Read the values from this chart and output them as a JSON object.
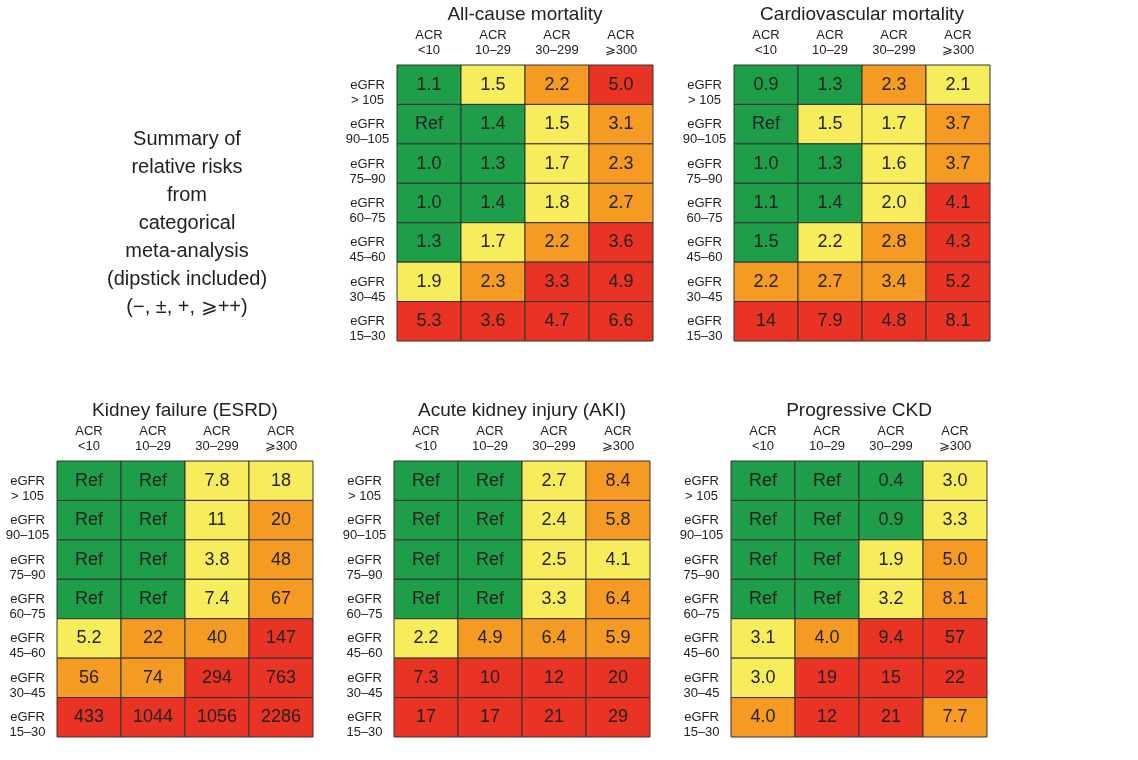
{
  "chart_data": [
    {
      "type": "other",
      "annotations": [
        "Summary of",
        "relative risks",
        "from",
        "categorical",
        "meta-analysis",
        "(dipstick included)",
        "(−, ±, +, ⩾++)"
      ]
    },
    {
      "type": "heatmap",
      "title": "All-cause mortality",
      "categories": [
        "ACR <10",
        "ACR 10–29",
        "ACR 30–299",
        "ACR ⩾300"
      ],
      "y_categories": [
        "eGFR > 105",
        "eGFR 90–105",
        "eGFR 75–90",
        "eGFR 60–75",
        "eGFR 45–60",
        "eGFR 30–45",
        "eGFR 15–30"
      ],
      "cells": [
        [
          1.1,
          1.5,
          2.2,
          5.0
        ],
        [
          null,
          1.4,
          1.5,
          3.1
        ],
        [
          1.0,
          1.3,
          1.7,
          2.3
        ],
        [
          1.0,
          1.4,
          1.8,
          2.7
        ],
        [
          1.3,
          1.7,
          2.2,
          3.6
        ],
        [
          1.9,
          2.3,
          3.3,
          4.9
        ],
        [
          5.3,
          3.6,
          4.7,
          6.6
        ]
      ],
      "cell_labels": [
        [
          "1.1",
          "1.5",
          "2.2",
          "5.0"
        ],
        [
          "Ref",
          "1.4",
          "1.5",
          "3.1"
        ],
        [
          "1.0",
          "1.3",
          "1.7",
          "2.3"
        ],
        [
          "1.0",
          "1.4",
          "1.8",
          "2.7"
        ],
        [
          "1.3",
          "1.7",
          "2.2",
          "3.6"
        ],
        [
          "1.9",
          "2.3",
          "3.3",
          "4.9"
        ],
        [
          "5.3",
          "3.6",
          "4.7",
          "6.6"
        ]
      ],
      "colors": [
        [
          "#1e9e48",
          "#f7ec5b",
          "#f59a23",
          "#e93425"
        ],
        [
          "#1e9e48",
          "#1e9e48",
          "#f7ec5b",
          "#f59a23"
        ],
        [
          "#1e9e48",
          "#1e9e48",
          "#f7ec5b",
          "#f59a23"
        ],
        [
          "#1e9e48",
          "#1e9e48",
          "#f7ec5b",
          "#f59a23"
        ],
        [
          "#1e9e48",
          "#f7ec5b",
          "#f59a23",
          "#e93425"
        ],
        [
          "#f7ec5b",
          "#f59a23",
          "#e93425",
          "#e93425"
        ],
        [
          "#e93425",
          "#e93425",
          "#e93425",
          "#e93425"
        ]
      ]
    },
    {
      "type": "heatmap",
      "title": "Cardiovascular mortality",
      "categories": [
        "ACR <10",
        "ACR 10–29",
        "ACR 30–299",
        "ACR ⩾300"
      ],
      "y_categories": [
        "eGFR > 105",
        "eGFR 90–105",
        "eGFR 75–90",
        "eGFR 60–75",
        "eGFR 45–60",
        "eGFR 30–45",
        "eGFR 15–30"
      ],
      "cells": [
        [
          0.9,
          1.3,
          2.3,
          2.1
        ],
        [
          null,
          1.5,
          1.7,
          3.7
        ],
        [
          1.0,
          1.3,
          1.6,
          3.7
        ],
        [
          1.1,
          1.4,
          2.0,
          4.1
        ],
        [
          1.5,
          2.2,
          2.8,
          4.3
        ],
        [
          2.2,
          2.7,
          3.4,
          5.2
        ],
        [
          14,
          7.9,
          4.8,
          8.1
        ]
      ],
      "cell_labels": [
        [
          "0.9",
          "1.3",
          "2.3",
          "2.1"
        ],
        [
          "Ref",
          "1.5",
          "1.7",
          "3.7"
        ],
        [
          "1.0",
          "1.3",
          "1.6",
          "3.7"
        ],
        [
          "1.1",
          "1.4",
          "2.0",
          "4.1"
        ],
        [
          "1.5",
          "2.2",
          "2.8",
          "4.3"
        ],
        [
          "2.2",
          "2.7",
          "3.4",
          "5.2"
        ],
        [
          "14",
          "7.9",
          "4.8",
          "8.1"
        ]
      ],
      "colors": [
        [
          "#1e9e48",
          "#1e9e48",
          "#f59a23",
          "#f7ec5b"
        ],
        [
          "#1e9e48",
          "#f7ec5b",
          "#f7ec5b",
          "#f59a23"
        ],
        [
          "#1e9e48",
          "#1e9e48",
          "#f7ec5b",
          "#f59a23"
        ],
        [
          "#1e9e48",
          "#1e9e48",
          "#f7ec5b",
          "#e93425"
        ],
        [
          "#1e9e48",
          "#f7ec5b",
          "#f59a23",
          "#e93425"
        ],
        [
          "#f59a23",
          "#f59a23",
          "#f59a23",
          "#e93425"
        ],
        [
          "#e93425",
          "#e93425",
          "#e93425",
          "#e93425"
        ]
      ]
    },
    {
      "type": "heatmap",
      "title": "Kidney failure (ESRD)",
      "categories": [
        "ACR <10",
        "ACR 10–29",
        "ACR 30–299",
        "ACR ⩾300"
      ],
      "y_categories": [
        "eGFR > 105",
        "eGFR 90–105",
        "eGFR 75–90",
        "eGFR 60–75",
        "eGFR 45–60",
        "eGFR 30–45",
        "eGFR 15–30"
      ],
      "cells": [
        [
          null,
          null,
          7.8,
          18
        ],
        [
          null,
          null,
          11,
          20
        ],
        [
          null,
          null,
          3.8,
          48
        ],
        [
          null,
          null,
          7.4,
          67
        ],
        [
          5.2,
          22,
          40,
          147
        ],
        [
          56,
          74,
          294,
          763
        ],
        [
          433,
          1044,
          1056,
          2286
        ]
      ],
      "cell_labels": [
        [
          "Ref",
          "Ref",
          "7.8",
          "18"
        ],
        [
          "Ref",
          "Ref",
          "11",
          "20"
        ],
        [
          "Ref",
          "Ref",
          "3.8",
          "48"
        ],
        [
          "Ref",
          "Ref",
          "7.4",
          "67"
        ],
        [
          "5.2",
          "22",
          "40",
          "147"
        ],
        [
          "56",
          "74",
          "294",
          "763"
        ],
        [
          "433",
          "1044",
          "1056",
          "2286"
        ]
      ],
      "colors": [
        [
          "#1e9e48",
          "#1e9e48",
          "#f7ec5b",
          "#f7ec5b"
        ],
        [
          "#1e9e48",
          "#1e9e48",
          "#f7ec5b",
          "#f59a23"
        ],
        [
          "#1e9e48",
          "#1e9e48",
          "#f7ec5b",
          "#f59a23"
        ],
        [
          "#1e9e48",
          "#1e9e48",
          "#f7ec5b",
          "#f59a23"
        ],
        [
          "#f7ec5b",
          "#f59a23",
          "#f59a23",
          "#e93425"
        ],
        [
          "#f59a23",
          "#f59a23",
          "#e93425",
          "#e93425"
        ],
        [
          "#e93425",
          "#e93425",
          "#e93425",
          "#e93425"
        ]
      ]
    },
    {
      "type": "heatmap",
      "title": "Acute kidney injury (AKI)",
      "categories": [
        "ACR <10",
        "ACR 10–29",
        "ACR 30–299",
        "ACR ⩾300"
      ],
      "y_categories": [
        "eGFR > 105",
        "eGFR 90–105",
        "eGFR 75–90",
        "eGFR 60–75",
        "eGFR 45–60",
        "eGFR 30–45",
        "eGFR 15–30"
      ],
      "cells": [
        [
          null,
          null,
          2.7,
          8.4
        ],
        [
          null,
          null,
          2.4,
          5.8
        ],
        [
          null,
          null,
          2.5,
          4.1
        ],
        [
          null,
          null,
          3.3,
          6.4
        ],
        [
          2.2,
          4.9,
          6.4,
          5.9
        ],
        [
          7.3,
          10,
          12,
          20
        ],
        [
          17,
          17,
          21,
          29
        ]
      ],
      "cell_labels": [
        [
          "Ref",
          "Ref",
          "2.7",
          "8.4"
        ],
        [
          "Ref",
          "Ref",
          "2.4",
          "5.8"
        ],
        [
          "Ref",
          "Ref",
          "2.5",
          "4.1"
        ],
        [
          "Ref",
          "Ref",
          "3.3",
          "6.4"
        ],
        [
          "2.2",
          "4.9",
          "6.4",
          "5.9"
        ],
        [
          "7.3",
          "10",
          "12",
          "20"
        ],
        [
          "17",
          "17",
          "21",
          "29"
        ]
      ],
      "colors": [
        [
          "#1e9e48",
          "#1e9e48",
          "#f7ec5b",
          "#f59a23"
        ],
        [
          "#1e9e48",
          "#1e9e48",
          "#f7ec5b",
          "#f59a23"
        ],
        [
          "#1e9e48",
          "#1e9e48",
          "#f7ec5b",
          "#f7ec5b"
        ],
        [
          "#1e9e48",
          "#1e9e48",
          "#f7ec5b",
          "#f59a23"
        ],
        [
          "#f7ec5b",
          "#f59a23",
          "#f59a23",
          "#f59a23"
        ],
        [
          "#e93425",
          "#e93425",
          "#e93425",
          "#e93425"
        ],
        [
          "#e93425",
          "#e93425",
          "#e93425",
          "#e93425"
        ]
      ]
    },
    {
      "type": "heatmap",
      "title": "Progressive CKD",
      "categories": [
        "ACR <10",
        "ACR 10–29",
        "ACR 30–299",
        "ACR ⩾300"
      ],
      "y_categories": [
        "eGFR > 105",
        "eGFR 90–105",
        "eGFR 75–90",
        "eGFR 60–75",
        "eGFR 45–60",
        "eGFR 30–45",
        "eGFR 15–30"
      ],
      "cells": [
        [
          null,
          null,
          0.4,
          3.0
        ],
        [
          null,
          null,
          0.9,
          3.3
        ],
        [
          null,
          null,
          1.9,
          5.0
        ],
        [
          null,
          null,
          3.2,
          8.1
        ],
        [
          3.1,
          4.0,
          9.4,
          57
        ],
        [
          3.0,
          19,
          15,
          22
        ],
        [
          4.0,
          12,
          21,
          7.7
        ]
      ],
      "cell_labels": [
        [
          "Ref",
          "Ref",
          "0.4",
          "3.0"
        ],
        [
          "Ref",
          "Ref",
          "0.9",
          "3.3"
        ],
        [
          "Ref",
          "Ref",
          "1.9",
          "5.0"
        ],
        [
          "Ref",
          "Ref",
          "3.2",
          "8.1"
        ],
        [
          "3.1",
          "4.0",
          "9.4",
          "57"
        ],
        [
          "3.0",
          "19",
          "15",
          "22"
        ],
        [
          "4.0",
          "12",
          "21",
          "7.7"
        ]
      ],
      "colors": [
        [
          "#1e9e48",
          "#1e9e48",
          "#1e9e48",
          "#f7ec5b"
        ],
        [
          "#1e9e48",
          "#1e9e48",
          "#1e9e48",
          "#f7ec5b"
        ],
        [
          "#1e9e48",
          "#1e9e48",
          "#f7ec5b",
          "#f59a23"
        ],
        [
          "#1e9e48",
          "#1e9e48",
          "#f7ec5b",
          "#f59a23"
        ],
        [
          "#f7ec5b",
          "#f59a23",
          "#e93425",
          "#e93425"
        ],
        [
          "#f7ec5b",
          "#e93425",
          "#e93425",
          "#e93425"
        ],
        [
          "#f59a23",
          "#e93425",
          "#e93425",
          "#f59a23"
        ]
      ]
    }
  ]
}
